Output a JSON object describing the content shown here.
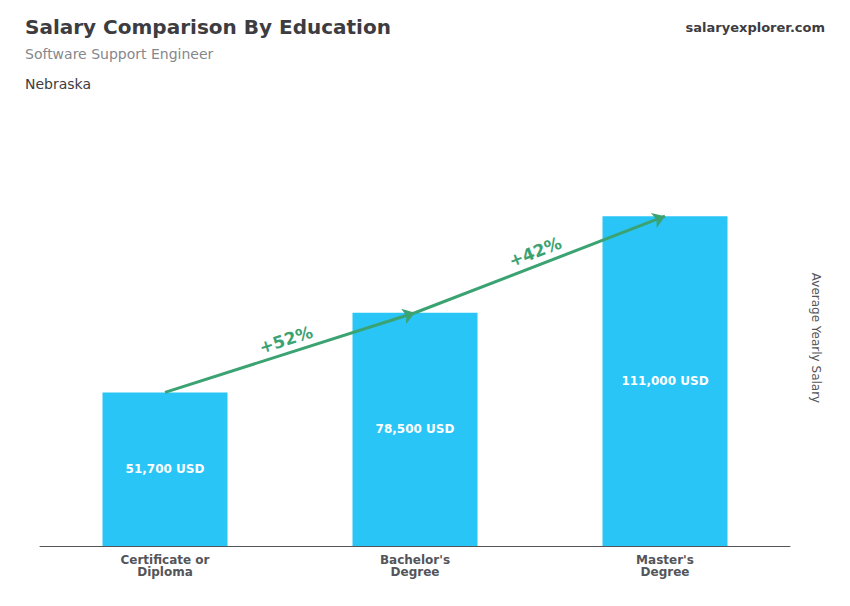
{
  "chart_data": {
    "type": "bar",
    "title": "Salary Comparison By Education",
    "subtitle": "Software Support Engineer",
    "location": "Nebraska",
    "brand": "salaryexplorer.com",
    "categories": [
      "Certificate or\nDiploma",
      "Bachelor's\nDegree",
      "Master's\nDegree"
    ],
    "values": [
      51700,
      78500,
      111000
    ],
    "value_labels": [
      "51,700 USD",
      "78,500 USD",
      "111,000 USD"
    ],
    "data_labels": true,
    "annotations": [
      "+52%",
      "+42%"
    ],
    "color": "#29c5f6",
    "ylabel": "Average Yearly Salary",
    "ylim": [
      0,
      140000
    ],
    "grid": false,
    "tick_labels": "x"
  }
}
